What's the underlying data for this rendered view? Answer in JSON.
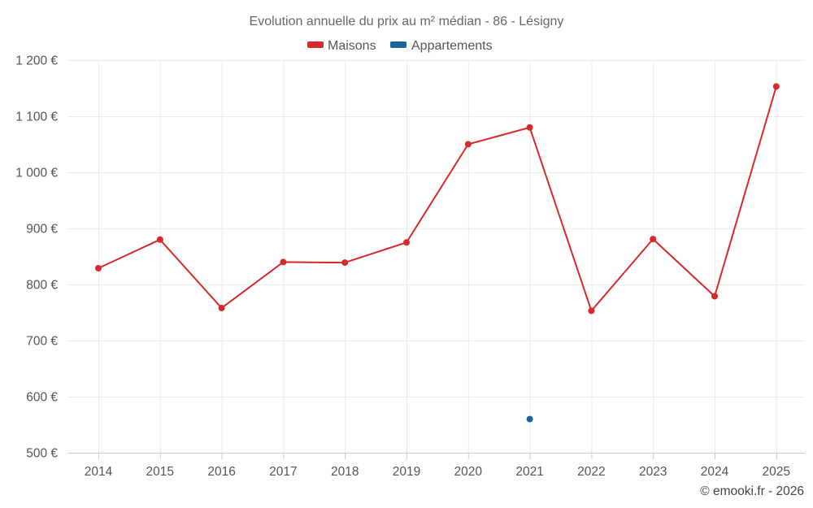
{
  "chart_data": {
    "type": "line",
    "title": "Evolution annuelle du prix au m² médian - 86 - Lésigny",
    "categories": [
      "2014",
      "2015",
      "2016",
      "2017",
      "2018",
      "2019",
      "2020",
      "2021",
      "2022",
      "2023",
      "2024",
      "2025"
    ],
    "series": [
      {
        "name": "Maisons",
        "color": "#d42a2a",
        "values": [
          829,
          880,
          758,
          840,
          839,
          875,
          1050,
          1080,
          753,
          881,
          779,
          1153
        ]
      },
      {
        "name": "Appartements",
        "color": "#17679d",
        "values": [
          null,
          null,
          null,
          null,
          null,
          null,
          null,
          560,
          null,
          null,
          null,
          null
        ]
      }
    ],
    "yticks": [
      500,
      600,
      700,
      800,
      900,
      1000,
      1100,
      1200
    ],
    "ytick_labels": [
      "500 €",
      "600 €",
      "700 €",
      "800 €",
      "900 €",
      "1 000 €",
      "1 100 €",
      "1 200 €"
    ],
    "ylim": [
      500,
      1200
    ],
    "xlabel": "",
    "ylabel": "",
    "legend_position": "top-center",
    "grid": true
  },
  "credit": "© emooki.fr - 2026"
}
